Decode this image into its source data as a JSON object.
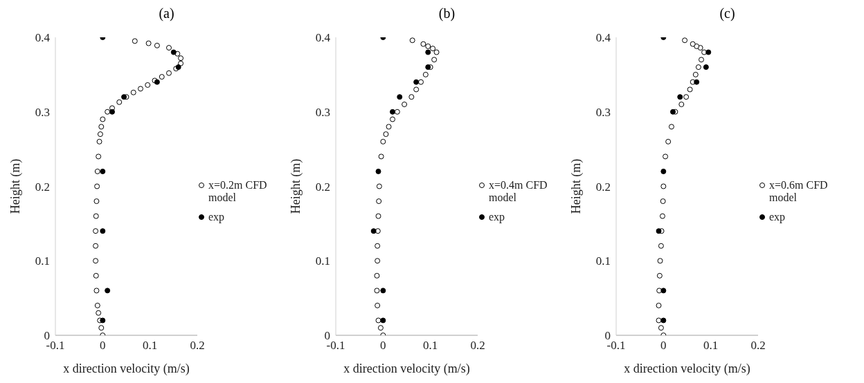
{
  "chart_data": [
    {
      "type": "scatter",
      "title": "(a)",
      "xlabel": "x direction velocity (m/s)",
      "ylabel": "Height (m)",
      "xlim": [
        -0.1,
        0.2
      ],
      "xticks": [
        -0.1,
        0,
        0.1,
        0.2
      ],
      "ylim": [
        0,
        0.4
      ],
      "yticks": [
        0,
        0.1,
        0.2,
        0.3,
        0.4
      ],
      "grid": false,
      "legend": "right",
      "marker": "circle",
      "series": [
        {
          "name": "x=0.2m CFD model",
          "color": "#000000",
          "x": [
            0,
            -0.003,
            -0.006,
            -0.009,
            -0.011,
            -0.013,
            -0.014,
            -0.015,
            -0.015,
            -0.015,
            -0.014,
            -0.013,
            -0.012,
            -0.011,
            -0.009,
            -0.007,
            -0.005,
            -0.003,
            0,
            0.01,
            0.02,
            0.035,
            0.05,
            0.065,
            0.08,
            0.095,
            0.11,
            0.125,
            0.14,
            0.155,
            0.165,
            0.165,
            0.158,
            0.14,
            0.115,
            0.097,
            0.068
          ],
          "values": [
            0,
            0.01,
            0.02,
            0.03,
            0.04,
            0.06,
            0.08,
            0.1,
            0.12,
            0.14,
            0.16,
            0.18,
            0.2,
            0.22,
            0.24,
            0.26,
            0.27,
            0.28,
            0.29,
            0.3,
            0.305,
            0.313,
            0.32,
            0.326,
            0.331,
            0.336,
            0.342,
            0.347,
            0.352,
            0.358,
            0.365,
            0.372,
            0.378,
            0.386,
            0.389,
            0.392,
            0.395
          ]
        },
        {
          "name": "exp",
          "color": "#000000",
          "x": [
            0,
            0.15,
            0.16,
            0.115,
            0.045,
            0.02,
            0,
            0,
            0.01,
            0
          ],
          "values": [
            0.4,
            0.38,
            0.36,
            0.34,
            0.32,
            0.3,
            0.22,
            0.14,
            0.06,
            0.02
          ]
        }
      ]
    },
    {
      "type": "scatter",
      "title": "(b)",
      "xlabel": "x direction velocity (m/s)",
      "ylabel": "Height (m)",
      "xlim": [
        -0.1,
        0.2
      ],
      "xticks": [
        -0.1,
        0,
        0.1,
        0.2
      ],
      "ylim": [
        0,
        0.4
      ],
      "yticks": [
        0,
        0.1,
        0.2,
        0.3,
        0.4
      ],
      "grid": false,
      "legend": "right",
      "marker": "circle",
      "series": [
        {
          "name": "x=0.4m CFD model",
          "color": "#000000",
          "x": [
            0,
            -0.005,
            -0.01,
            -0.012,
            -0.013,
            -0.013,
            -0.012,
            -0.012,
            -0.011,
            -0.01,
            -0.009,
            -0.008,
            -0.004,
            0,
            0.006,
            0.012,
            0.02,
            0.03,
            0.045,
            0.06,
            0.07,
            0.08,
            0.09,
            0.1,
            0.108,
            0.113,
            0.105,
            0.095,
            0.085,
            0.062
          ],
          "values": [
            0,
            0.01,
            0.02,
            0.04,
            0.06,
            0.08,
            0.1,
            0.12,
            0.14,
            0.16,
            0.18,
            0.2,
            0.24,
            0.26,
            0.27,
            0.28,
            0.29,
            0.3,
            0.31,
            0.32,
            0.33,
            0.34,
            0.35,
            0.36,
            0.37,
            0.38,
            0.385,
            0.388,
            0.391,
            0.396
          ]
        },
        {
          "name": "exp",
          "color": "#000000",
          "x": [
            0,
            0.095,
            0.095,
            0.07,
            0.035,
            0.02,
            -0.01,
            -0.02,
            0,
            0
          ],
          "values": [
            0.4,
            0.38,
            0.36,
            0.34,
            0.32,
            0.3,
            0.22,
            0.14,
            0.06,
            0.02
          ]
        }
      ]
    },
    {
      "type": "scatter",
      "title": "(c)",
      "xlabel": "x direction velocity (m/s)",
      "ylabel": "Height (m)",
      "xlim": [
        -0.1,
        0.2
      ],
      "xticks": [
        -0.1,
        0,
        0.1,
        0.2
      ],
      "ylim": [
        0,
        0.4
      ],
      "yticks": [
        0,
        0.1,
        0.2,
        0.3,
        0.4
      ],
      "grid": false,
      "legend": "right",
      "marker": "circle",
      "series": [
        {
          "name": "x=0.6m CFD model",
          "color": "#000000",
          "x": [
            0,
            -0.005,
            -0.01,
            -0.01,
            -0.009,
            -0.008,
            -0.007,
            -0.005,
            -0.004,
            -0.002,
            -0.001,
            0,
            0.004,
            0.01,
            0.017,
            0.025,
            0.038,
            0.048,
            0.056,
            0.062,
            0.068,
            0.074,
            0.08,
            0.086,
            0.078,
            0.07,
            0.062,
            0.045
          ],
          "values": [
            0,
            0.01,
            0.02,
            0.04,
            0.06,
            0.08,
            0.1,
            0.12,
            0.14,
            0.16,
            0.18,
            0.2,
            0.24,
            0.26,
            0.28,
            0.3,
            0.31,
            0.32,
            0.33,
            0.34,
            0.35,
            0.36,
            0.37,
            0.38,
            0.386,
            0.388,
            0.391,
            0.396
          ]
        },
        {
          "name": "exp",
          "color": "#000000",
          "x": [
            0,
            0.095,
            0.09,
            0.07,
            0.035,
            0.02,
            0,
            -0.01,
            0,
            0
          ],
          "values": [
            0.4,
            0.38,
            0.36,
            0.34,
            0.32,
            0.3,
            0.22,
            0.14,
            0.06,
            0.02
          ]
        }
      ]
    }
  ]
}
